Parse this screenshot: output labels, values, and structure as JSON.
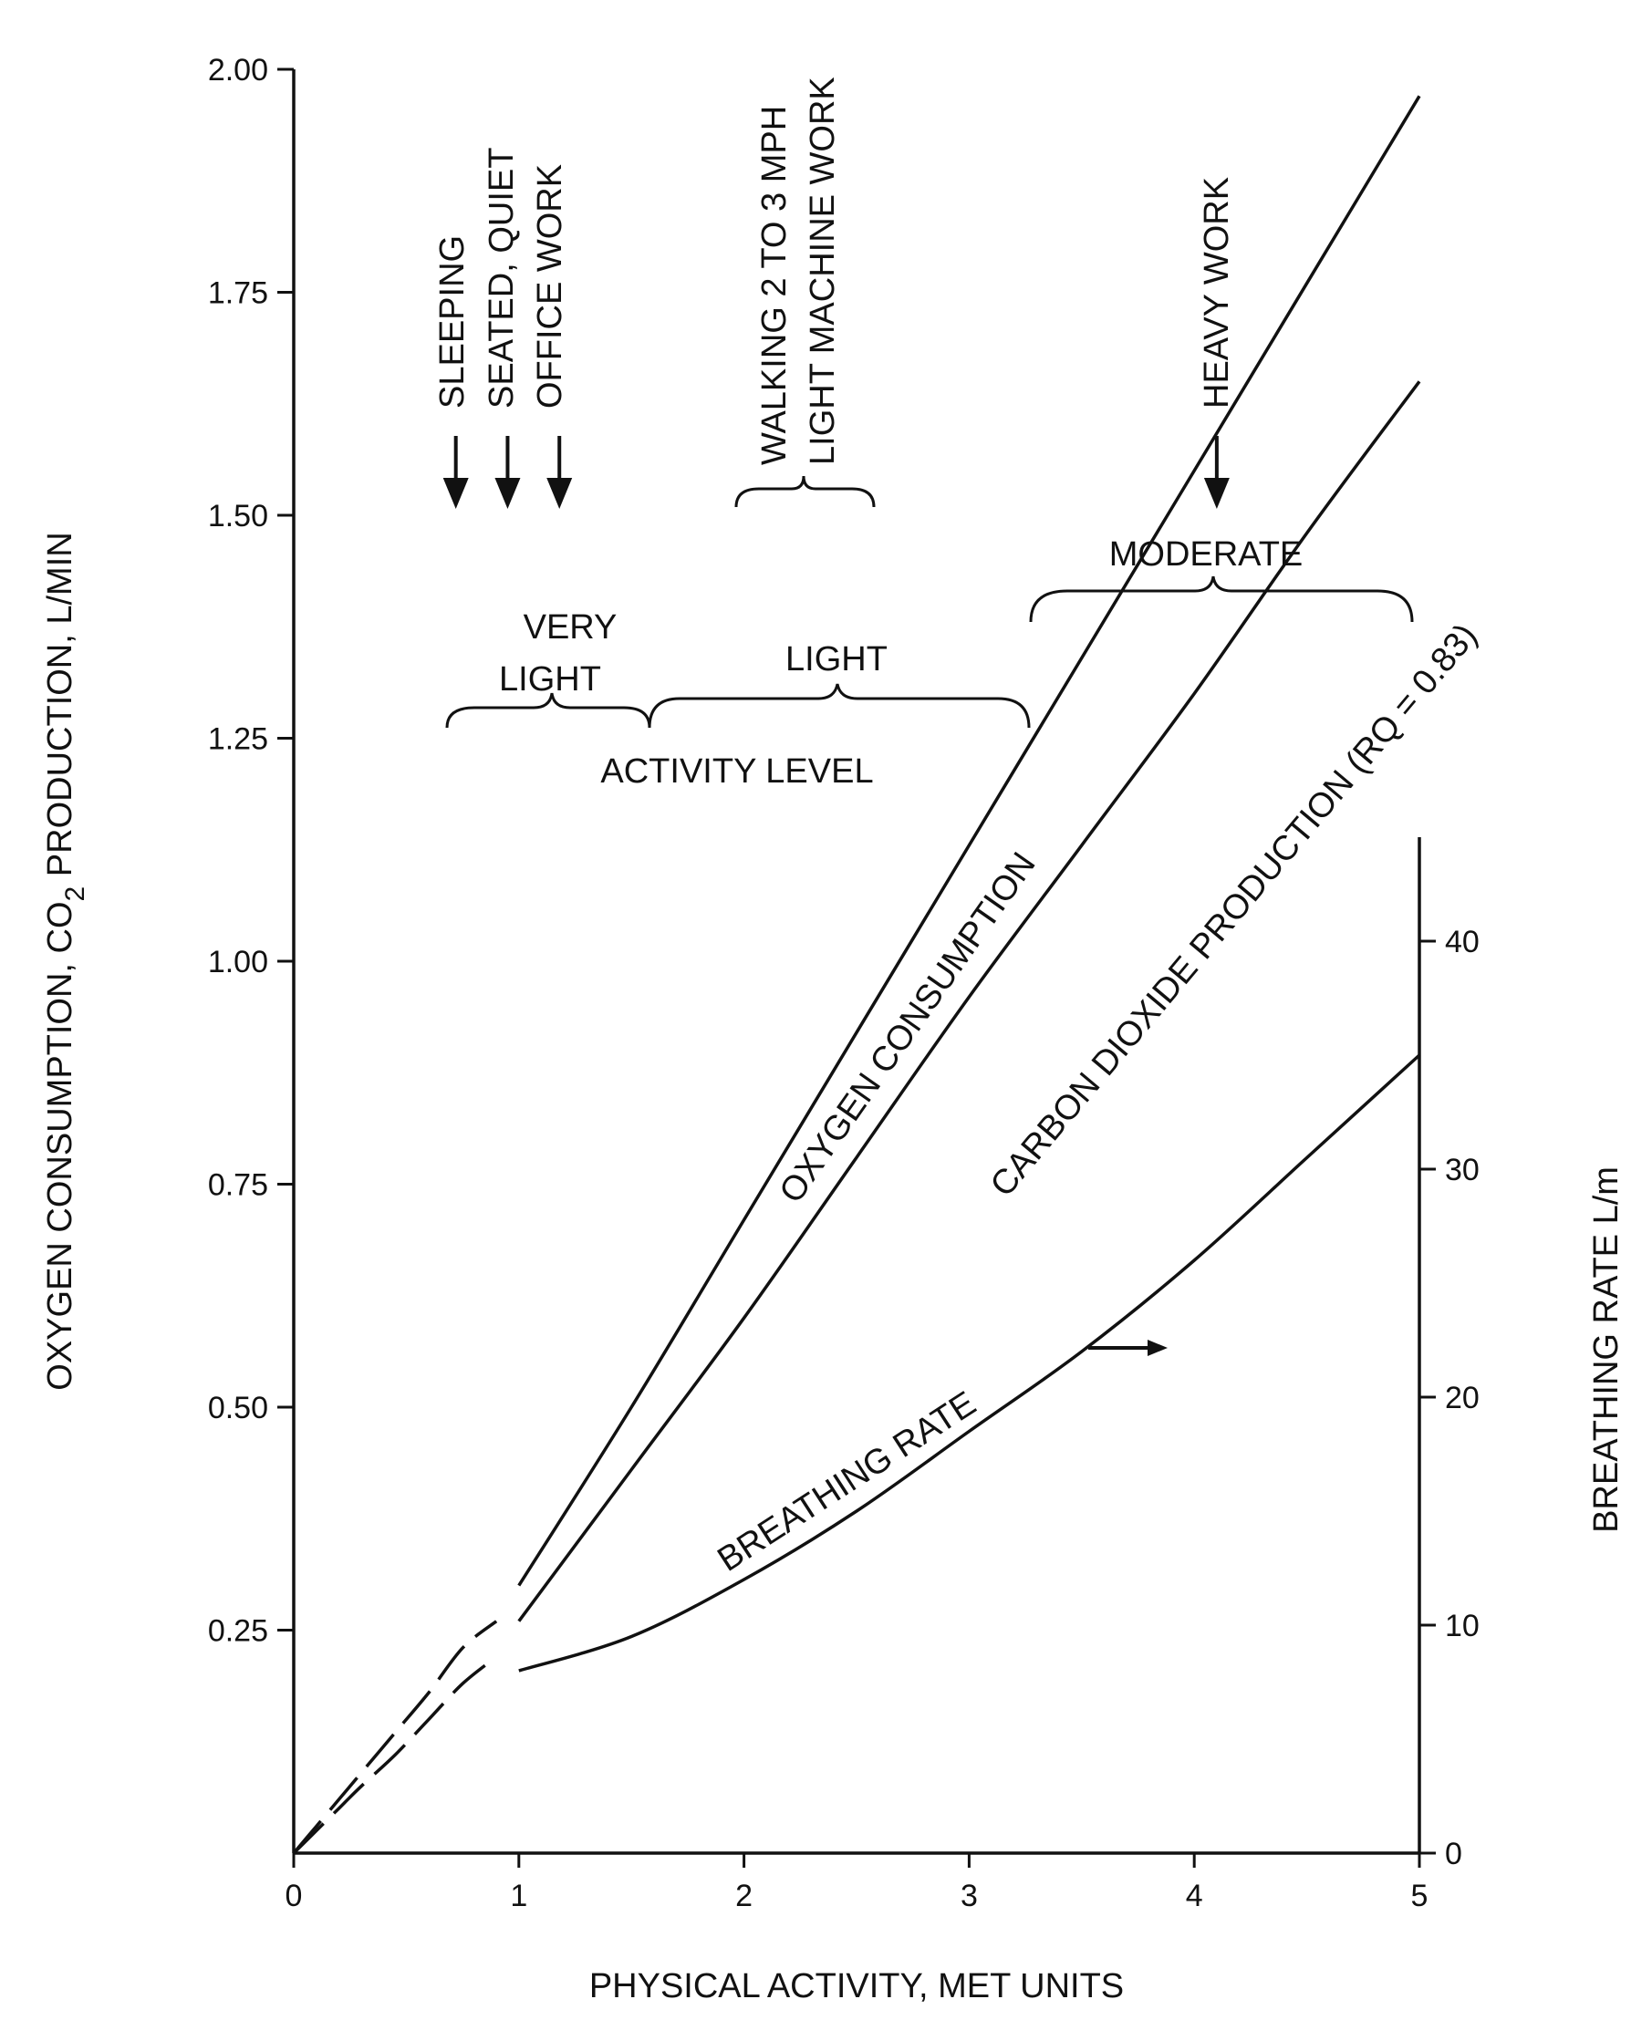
{
  "chart_data": {
    "type": "line",
    "xlabel": "PHYSICAL ACTIVITY, MET UNITS",
    "ylabel_parts": [
      "OXYGEN CONSUMPTION, CO",
      "2",
      " PRODUCTION, L/MIN"
    ],
    "y2label": "BREATHING RATE L/m",
    "xlim": [
      0,
      5
    ],
    "ylim": [
      0,
      2.0
    ],
    "y2lim": [
      0,
      44
    ],
    "xticks": [
      0,
      1,
      2,
      3,
      4,
      5
    ],
    "xtick_labels": [
      "0",
      "1",
      "2",
      "3",
      "4",
      "5"
    ],
    "yticks": [
      0.25,
      0.5,
      0.75,
      1.0,
      1.25,
      1.5,
      1.75,
      2.0
    ],
    "ytick_labels": [
      "0.25",
      "0.50",
      "0.75",
      "1.00",
      "1.25",
      "1.50",
      "1.75",
      "2.00"
    ],
    "y2ticks": [
      0,
      10,
      20,
      30,
      40
    ],
    "y2tick_labels": [
      "0",
      "10",
      "20",
      "30",
      "40"
    ],
    "series": [
      {
        "name": "OXYGEN CONSUMPTION",
        "axis": "left",
        "dashed_segment": {
          "x": [
            0,
            0.1,
            0.2,
            0.3,
            0.45,
            0.6,
            0.75,
            0.9
          ],
          "y": [
            0,
            0.03,
            0.06,
            0.09,
            0.135,
            0.18,
            0.23,
            0.26
          ]
        },
        "x": [
          1.0,
          1.5,
          2.0,
          2.5,
          3.0,
          3.5,
          4.0,
          4.5,
          5.0
        ],
        "y": [
          0.3,
          0.5,
          0.71,
          0.92,
          1.13,
          1.34,
          1.55,
          1.76,
          1.97
        ]
      },
      {
        "name": "CARBON DIOXIDE PRODUCTION (RQ = 0.83)",
        "axis": "left",
        "dashed_segment": {
          "x": [
            0,
            0.1,
            0.2,
            0.3,
            0.45,
            0.6,
            0.75,
            0.9
          ],
          "y": [
            0,
            0.025,
            0.05,
            0.075,
            0.11,
            0.15,
            0.19,
            0.22
          ]
        },
        "x": [
          1.0,
          1.5,
          2.0,
          2.5,
          3.0,
          3.5,
          4.0,
          4.5,
          5.0
        ],
        "y": [
          0.26,
          0.43,
          0.6,
          0.78,
          0.96,
          1.13,
          1.3,
          1.48,
          1.65
        ]
      },
      {
        "name": "BREATHING RATE",
        "axis": "right",
        "x": [
          1.0,
          1.5,
          2.0,
          2.5,
          3.0,
          3.5,
          4.0,
          4.5,
          5.0
        ],
        "y": [
          8.0,
          9.5,
          12.0,
          15.0,
          18.5,
          22.0,
          26.0,
          30.5,
          35.0
        ]
      }
    ],
    "series_labels": {
      "oxygen": "OXYGEN CONSUMPTION",
      "co2": "CARBON DIOXIDE PRODUCTION (RQ = 0.83)",
      "breathing": "BREATHING RATE"
    },
    "activities": [
      {
        "label": "SLEEPING",
        "x": 0.72
      },
      {
        "label": "SEATED, QUIET",
        "x": 0.95
      },
      {
        "label": "OFFICE WORK",
        "x": 1.18
      },
      {
        "label": "HEAVY WORK",
        "x": 4.1
      }
    ],
    "bracket_labels": {
      "walking_1": "WALKING 2 TO 3 MPH",
      "walking_2": "LIGHT MACHINE WORK",
      "very_light_1": "VERY",
      "very_light_2": "LIGHT",
      "light": "LIGHT",
      "moderate": "MODERATE",
      "activity_level": "ACTIVITY LEVEL"
    }
  }
}
